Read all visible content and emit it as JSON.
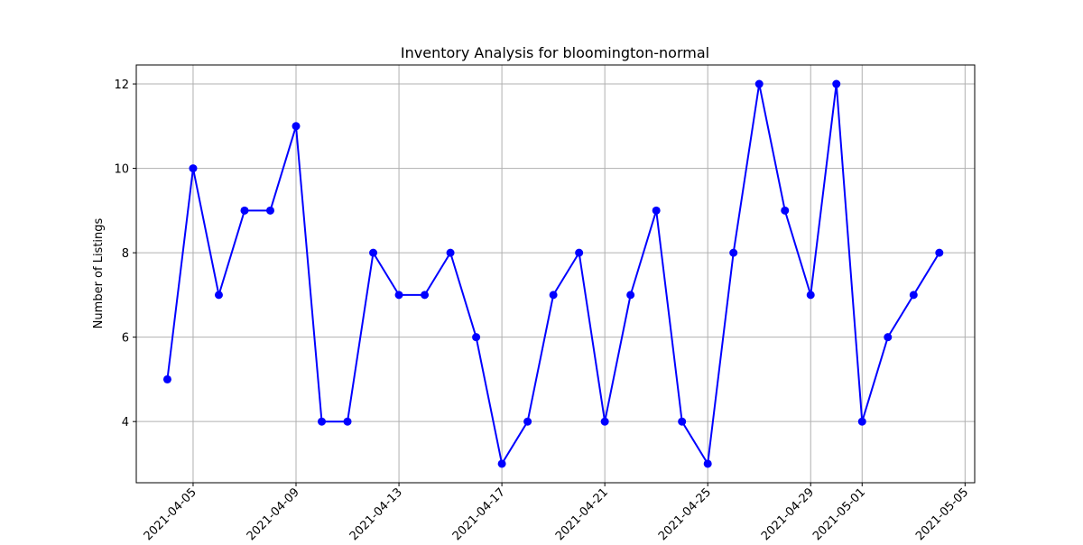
{
  "chart_data": {
    "type": "line",
    "title": "Inventory Analysis for bloomington-normal",
    "xlabel": "",
    "ylabel": "Number of Listings",
    "x": [
      "2021-04-04",
      "2021-04-05",
      "2021-04-06",
      "2021-04-07",
      "2021-04-08",
      "2021-04-09",
      "2021-04-10",
      "2021-04-11",
      "2021-04-12",
      "2021-04-13",
      "2021-04-14",
      "2021-04-15",
      "2021-04-16",
      "2021-04-17",
      "2021-04-18",
      "2021-04-19",
      "2021-04-20",
      "2021-04-21",
      "2021-04-22",
      "2021-04-23",
      "2021-04-24",
      "2021-04-25",
      "2021-04-26",
      "2021-04-27",
      "2021-04-28",
      "2021-04-29",
      "2021-04-30",
      "2021-05-01",
      "2021-05-02",
      "2021-05-03",
      "2021-05-04"
    ],
    "series": [
      {
        "values": [
          5,
          10,
          7,
          9,
          9,
          11,
          4,
          4,
          8,
          7,
          7,
          8,
          6,
          3,
          4,
          7,
          8,
          4,
          7,
          9,
          4,
          3,
          8,
          12,
          9,
          7,
          12,
          4,
          6,
          7,
          8
        ],
        "color": "#0000ff",
        "marker": "circle"
      }
    ],
    "x_ticks": [
      "2021-04-05",
      "2021-04-09",
      "2021-04-13",
      "2021-04-17",
      "2021-04-21",
      "2021-04-25",
      "2021-04-29",
      "2021-05-01",
      "2021-05-05"
    ],
    "y_ticks": [
      "4",
      "6",
      "8",
      "10",
      "12"
    ],
    "xlim": [
      "2021-04-02T19:00",
      "2021-05-05T09:00"
    ],
    "ylim": [
      2.55,
      12.45
    ],
    "grid": true,
    "x_tick_rotation": 45
  }
}
